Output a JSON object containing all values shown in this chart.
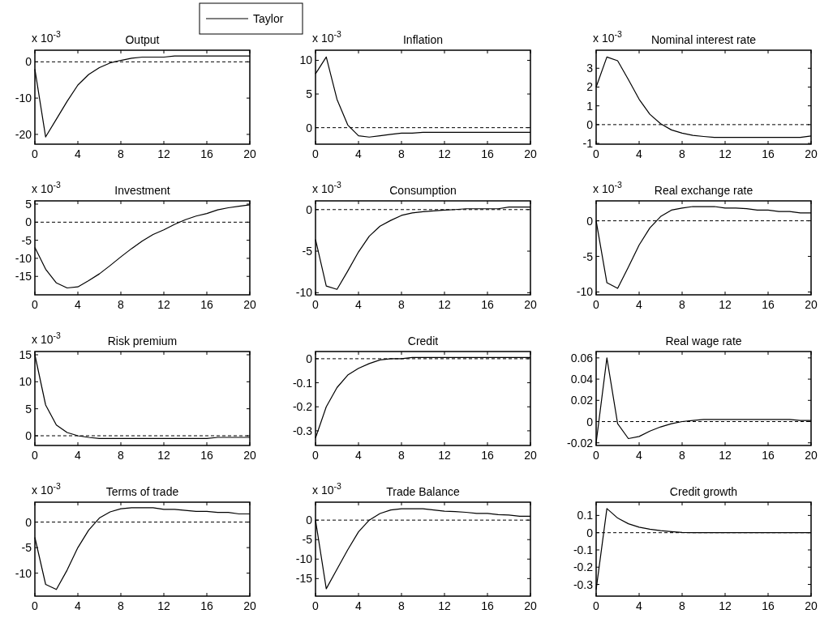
{
  "chart_data": [
    {
      "type": "line",
      "title": "Output",
      "annotations": [
        "x 10$^{-3}$"
      ],
      "x": [
        0,
        1,
        2,
        3,
        4,
        5,
        6,
        7,
        8,
        9,
        10,
        11,
        12,
        13,
        14,
        15,
        16,
        17,
        18,
        19,
        20
      ],
      "xlim": [
        0,
        20
      ],
      "xticks": [
        0,
        4,
        8,
        12,
        16,
        20
      ],
      "ylim": [
        -22.7,
        3.2
      ],
      "yticks": [
        -20,
        -10,
        0
      ],
      "legend": "top right",
      "series": [
        {
          "name": "Taylor",
          "color": "#000000",
          "values": [
            -2,
            -20.7,
            -15.8,
            -10.9,
            -6.4,
            -3.5,
            -1.6,
            -0.3,
            0.4,
            1,
            1.3,
            1.3,
            1.3,
            1.6,
            1.6,
            1.6,
            1.6,
            1.6,
            1.6,
            1.6,
            1.6
          ]
        }
      ],
      "ref_lines": [
        {
          "axis": "y",
          "value": 0,
          "color": "#000000",
          "line_style": "dashed"
        }
      ]
    },
    {
      "type": "line",
      "title": "Inflation",
      "annotations": [
        "x 10$^{-3}$"
      ],
      "x": [
        0,
        1,
        2,
        3,
        4,
        5,
        6,
        7,
        8,
        9,
        10,
        11,
        12,
        13,
        14,
        15,
        16,
        17,
        18,
        19,
        20
      ],
      "xlim": [
        0,
        20
      ],
      "xticks": [
        0,
        4,
        8,
        12,
        16,
        20
      ],
      "ylim": [
        -2.45,
        11.5
      ],
      "yticks": [
        0,
        5,
        10
      ],
      "series": [
        {
          "color": "#000000",
          "values": [
            8,
            10.5,
            4.2,
            0.4,
            -1.2,
            -1.4,
            -1.2,
            -1,
            -0.8,
            -0.8,
            -0.7,
            -0.7,
            -0.7,
            -0.7,
            -0.7,
            -0.7,
            -0.7,
            -0.7,
            -0.7,
            -0.7,
            -0.7
          ]
        }
      ],
      "ref_lines": [
        {
          "axis": "y",
          "value": 0,
          "color": "#000000",
          "line_style": "dashed"
        }
      ]
    },
    {
      "type": "line",
      "title": "Nominal interest rate",
      "annotations": [
        "x 10$^{-3}$"
      ],
      "x": [
        0,
        1,
        2,
        3,
        4,
        5,
        6,
        7,
        8,
        9,
        10,
        11,
        12,
        13,
        14,
        15,
        16,
        17,
        18,
        19,
        20
      ],
      "xlim": [
        0,
        20
      ],
      "xticks": [
        0,
        4,
        8,
        12,
        16,
        20
      ],
      "ylim": [
        -1.04,
        3.96
      ],
      "yticks": [
        -1,
        0,
        1,
        2,
        3
      ],
      "series": [
        {
          "color": "#000000",
          "values": [
            2,
            3.6,
            3.4,
            2.4,
            1.35,
            0.55,
            0.05,
            -0.28,
            -0.45,
            -0.57,
            -0.63,
            -0.68,
            -0.68,
            -0.68,
            -0.68,
            -0.68,
            -0.68,
            -0.68,
            -0.68,
            -0.68,
            -0.6
          ]
        }
      ],
      "ref_lines": [
        {
          "axis": "y",
          "value": 0,
          "color": "#000000",
          "line_style": "dashed"
        }
      ]
    },
    {
      "type": "line",
      "title": "Investment",
      "annotations": [
        "x 10$^{-3}$"
      ],
      "x": [
        0,
        1,
        2,
        3,
        4,
        5,
        6,
        7,
        8,
        9,
        10,
        11,
        12,
        13,
        14,
        15,
        16,
        17,
        18,
        19,
        20
      ],
      "xlim": [
        0,
        20
      ],
      "xticks": [
        0,
        4,
        8,
        12,
        16,
        20
      ],
      "ylim": [
        -20.1,
        5.9
      ],
      "yticks": [
        -15,
        -10,
        -5,
        0,
        5
      ],
      "series": [
        {
          "color": "#000000",
          "values": [
            -7,
            -13,
            -16.8,
            -18.2,
            -17.9,
            -16.2,
            -14.3,
            -12,
            -9.6,
            -7.3,
            -5.2,
            -3.4,
            -2.1,
            -0.6,
            0.7,
            1.7,
            2.4,
            3.4,
            4,
            4.4,
            4.8
          ]
        }
      ],
      "ref_lines": [
        {
          "axis": "y",
          "value": 0,
          "color": "#000000",
          "line_style": "dashed"
        }
      ]
    },
    {
      "type": "line",
      "title": "Consumption",
      "annotations": [
        "x 10$^{-3}$"
      ],
      "x": [
        0,
        1,
        2,
        3,
        4,
        5,
        6,
        7,
        8,
        9,
        10,
        11,
        12,
        13,
        14,
        15,
        16,
        17,
        18,
        19,
        20
      ],
      "xlim": [
        0,
        20
      ],
      "xticks": [
        0,
        4,
        8,
        12,
        16,
        20
      ],
      "ylim": [
        -10.26,
        1.05
      ],
      "yticks": [
        -10,
        -5,
        0
      ],
      "series": [
        {
          "color": "#000000",
          "values": [
            -3.6,
            -9.2,
            -9.6,
            -7.4,
            -5.1,
            -3.2,
            -2,
            -1.3,
            -0.7,
            -0.4,
            -0.25,
            -0.15,
            -0.05,
            0,
            0.1,
            0.1,
            0.1,
            0.1,
            0.3,
            0.3,
            0.3
          ]
        }
      ],
      "ref_lines": [
        {
          "axis": "y",
          "value": 0,
          "color": "#000000",
          "line_style": "dashed"
        }
      ]
    },
    {
      "type": "line",
      "title": "Real exchange rate",
      "annotations": [
        "x 10$^{-3}$"
      ],
      "x": [
        0,
        1,
        2,
        3,
        4,
        5,
        6,
        7,
        8,
        9,
        10,
        11,
        12,
        13,
        14,
        15,
        16,
        17,
        18,
        19,
        20
      ],
      "xlim": [
        0,
        20
      ],
      "xticks": [
        0,
        4,
        8,
        12,
        16,
        20
      ],
      "ylim": [
        -10.4,
        2.8
      ],
      "yticks": [
        -10,
        -5,
        0
      ],
      "series": [
        {
          "color": "#000000",
          "values": [
            0,
            -8.7,
            -9.5,
            -6.5,
            -3.4,
            -1,
            0.6,
            1.5,
            1.8,
            2,
            2,
            2,
            1.8,
            1.8,
            1.7,
            1.5,
            1.5,
            1.3,
            1.3,
            1.1,
            1.1
          ]
        }
      ],
      "ref_lines": [
        {
          "axis": "y",
          "value": 0,
          "color": "#000000",
          "line_style": "dashed"
        }
      ]
    },
    {
      "type": "line",
      "title": "Risk premium",
      "annotations": [
        "x 10$^{-3}$"
      ],
      "x": [
        0,
        1,
        2,
        3,
        4,
        5,
        6,
        7,
        8,
        9,
        10,
        11,
        12,
        13,
        14,
        15,
        16,
        17,
        18,
        19,
        20
      ],
      "xlim": [
        0,
        20
      ],
      "xticks": [
        0,
        4,
        8,
        12,
        16,
        20
      ],
      "ylim": [
        -1.8,
        15.6
      ],
      "yticks": [
        0,
        5,
        10,
        15
      ],
      "series": [
        {
          "color": "#000000",
          "values": [
            15,
            5.7,
            2,
            0.6,
            0,
            -0.3,
            -0.5,
            -0.5,
            -0.5,
            -0.5,
            -0.5,
            -0.5,
            -0.5,
            -0.5,
            -0.5,
            -0.5,
            -0.5,
            -0.3,
            -0.3,
            -0.3,
            -0.3
          ]
        }
      ],
      "ref_lines": [
        {
          "axis": "y",
          "value": 0,
          "color": "#000000",
          "line_style": "dashed"
        }
      ]
    },
    {
      "type": "line",
      "title": "Credit",
      "x": [
        0,
        1,
        2,
        3,
        4,
        5,
        6,
        7,
        8,
        9,
        10,
        11,
        12,
        13,
        14,
        15,
        16,
        17,
        18,
        19,
        20
      ],
      "xlim": [
        0,
        20
      ],
      "xticks": [
        0,
        4,
        8,
        12,
        16,
        20
      ],
      "ylim": [
        -0.361,
        0.03
      ],
      "yticks": [
        -0.3,
        -0.2,
        -0.1,
        0
      ],
      "series": [
        {
          "color": "#000000",
          "values": [
            -0.33,
            -0.2,
            -0.12,
            -0.068,
            -0.04,
            -0.02,
            -0.005,
            0,
            0,
            0.005,
            0.005,
            0.005,
            0.005,
            0.005,
            0.005,
            0.005,
            0.005,
            0.005,
            0.005,
            0.005,
            0.005
          ]
        }
      ],
      "ref_lines": [
        {
          "axis": "y",
          "value": 0,
          "color": "#000000",
          "line_style": "dashed"
        }
      ]
    },
    {
      "type": "line",
      "title": "Real wage rate",
      "x": [
        0,
        1,
        2,
        3,
        4,
        5,
        6,
        7,
        8,
        9,
        10,
        11,
        12,
        13,
        14,
        15,
        16,
        17,
        18,
        19,
        20
      ],
      "xlim": [
        0,
        20
      ],
      "xticks": [
        0,
        4,
        8,
        12,
        16,
        20
      ],
      "ylim": [
        -0.0225,
        0.066
      ],
      "yticks": [
        -0.02,
        0,
        0.02,
        0.04,
        0.06
      ],
      "series": [
        {
          "color": "#000000",
          "values": [
            -0.02,
            0.06,
            -0.002,
            -0.016,
            -0.014,
            -0.009,
            -0.005,
            -0.002,
            0,
            0.001,
            0.002,
            0.002,
            0.002,
            0.002,
            0.002,
            0.002,
            0.002,
            0.002,
            0.002,
            0.001,
            0.001
          ]
        }
      ],
      "ref_lines": [
        {
          "axis": "y",
          "value": 0,
          "color": "#000000",
          "line_style": "dashed"
        }
      ]
    },
    {
      "type": "line",
      "title": "Terms of trade",
      "annotations": [
        "x 10$^{-3}$"
      ],
      "x": [
        0,
        1,
        2,
        3,
        4,
        5,
        6,
        7,
        8,
        9,
        10,
        11,
        12,
        13,
        14,
        15,
        16,
        17,
        18,
        19,
        20
      ],
      "xlim": [
        0,
        20
      ],
      "xticks": [
        0,
        4,
        8,
        12,
        16,
        20
      ],
      "ylim": [
        -14.5,
        3.9
      ],
      "yticks": [
        -10,
        -5,
        0
      ],
      "series": [
        {
          "color": "#000000",
          "values": [
            -3,
            -12.2,
            -13.2,
            -9.4,
            -5,
            -1.6,
            0.8,
            2,
            2.6,
            2.8,
            2.8,
            2.8,
            2.5,
            2.5,
            2.3,
            2.1,
            2.1,
            1.9,
            1.9,
            1.6,
            1.6
          ]
        }
      ],
      "ref_lines": [
        {
          "axis": "y",
          "value": 0,
          "color": "#000000",
          "line_style": "dashed"
        }
      ]
    },
    {
      "type": "line",
      "title": "Trade Balance",
      "annotations": [
        "x 10$^{-3}$"
      ],
      "x": [
        0,
        1,
        2,
        3,
        4,
        5,
        6,
        7,
        8,
        9,
        10,
        11,
        12,
        13,
        14,
        15,
        16,
        17,
        18,
        19,
        20
      ],
      "xlim": [
        0,
        20
      ],
      "xticks": [
        0,
        4,
        8,
        12,
        16,
        20
      ],
      "ylim": [
        -19.5,
        4.6
      ],
      "yticks": [
        -15,
        -10,
        -5,
        0
      ],
      "series": [
        {
          "color": "#000000",
          "values": [
            0,
            -17.6,
            -12.6,
            -7.6,
            -3,
            0,
            1.7,
            2.6,
            2.9,
            2.9,
            2.9,
            2.6,
            2.3,
            2.2,
            2,
            1.7,
            1.7,
            1.4,
            1.3,
            1,
            1
          ]
        }
      ],
      "ref_lines": [
        {
          "axis": "y",
          "value": 0,
          "color": "#000000",
          "line_style": "dashed"
        }
      ]
    },
    {
      "type": "line",
      "title": "Credit growth",
      "x": [
        0,
        1,
        2,
        3,
        4,
        5,
        6,
        7,
        8,
        9,
        10,
        11,
        12,
        13,
        14,
        15,
        16,
        17,
        18,
        19,
        20
      ],
      "xlim": [
        0,
        20
      ],
      "xticks": [
        0,
        4,
        8,
        12,
        16,
        20
      ],
      "ylim": [
        -0.368,
        0.177
      ],
      "yticks": [
        -0.3,
        -0.2,
        -0.1,
        0,
        0.1
      ],
      "series": [
        {
          "color": "#000000",
          "values": [
            -0.33,
            0.14,
            0.085,
            0.052,
            0.032,
            0.02,
            0.012,
            0.006,
            0.001,
            0,
            0,
            0,
            0,
            0,
            0,
            0,
            0,
            0,
            0,
            0,
            0
          ]
        }
      ],
      "ref_lines": [
        {
          "axis": "y",
          "value": 0,
          "color": "#000000",
          "line_style": "dashed"
        }
      ]
    }
  ]
}
